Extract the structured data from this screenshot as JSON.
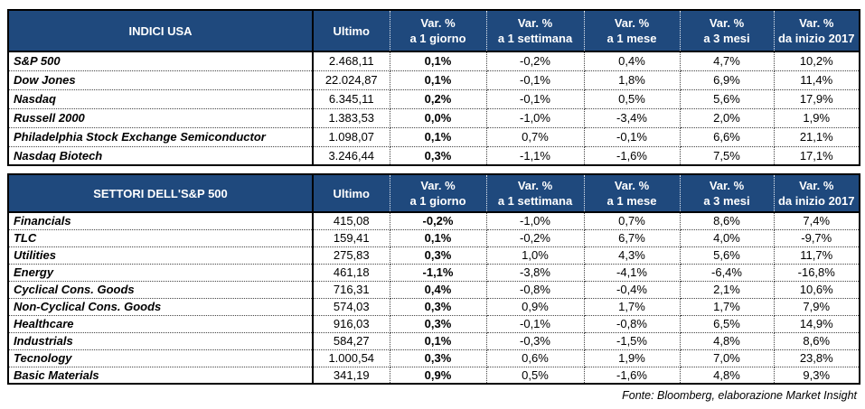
{
  "colors": {
    "header_bg": "#1F497D",
    "header_text": "#FFFFFF",
    "border": "#000000",
    "row_bg": "#FFFFFF"
  },
  "header": {
    "ultimo_label": "Ultimo",
    "var_cols": [
      {
        "top": "Var. %",
        "bottom": "a 1 giorno"
      },
      {
        "top": "Var. %",
        "bottom": "a 1 settimana"
      },
      {
        "top": "Var. %",
        "bottom": "a 1 mese"
      },
      {
        "top": "Var. %",
        "bottom": "a 3 mesi"
      },
      {
        "top": "Var. %",
        "bottom": "da inizio 2017"
      }
    ]
  },
  "footer": {
    "source": "Fonte: Bloomberg, elaborazione Market Insight"
  },
  "chart_data": [
    {
      "type": "table",
      "title": "INDICI USA",
      "columns": [
        "INDICI USA",
        "Ultimo",
        "Var. % a 1 giorno",
        "Var. % a 1 settimana",
        "Var. % a 1 mese",
        "Var. % a 3 mesi",
        "Var. % da inizio 2017"
      ],
      "rows": [
        [
          "S&P 500",
          "2.468,11",
          "0,1%",
          "-0,2%",
          "0,4%",
          "4,7%",
          "10,2%"
        ],
        [
          "Dow Jones",
          "22.024,87",
          "0,1%",
          "-0,1%",
          "1,8%",
          "6,9%",
          "11,4%"
        ],
        [
          "Nasdaq",
          "6.345,11",
          "0,2%",
          "-0,1%",
          "0,5%",
          "5,6%",
          "17,9%"
        ],
        [
          "Russell 2000",
          "1.383,53",
          "0,0%",
          "-1,0%",
          "-3,4%",
          "2,0%",
          "1,9%"
        ],
        [
          "Philadelphia Stock Exchange Semiconductor",
          "1.098,07",
          "0,1%",
          "0,7%",
          "-0,1%",
          "6,6%",
          "21,1%"
        ],
        [
          "Nasdaq Biotech",
          "3.246,44",
          "0,3%",
          "-1,1%",
          "-1,6%",
          "7,5%",
          "17,1%"
        ]
      ]
    },
    {
      "type": "table",
      "title": "SETTORI DELL'S&P 500",
      "columns": [
        "SETTORI DELL'S&P 500",
        "Ultimo",
        "Var. % a 1 giorno",
        "Var. % a 1 settimana",
        "Var. % a 1 mese",
        "Var. % a 3 mesi",
        "Var. % da inizio 2017"
      ],
      "rows": [
        [
          "Financials",
          "415,08",
          "-0,2%",
          "-1,0%",
          "0,7%",
          "8,6%",
          "7,4%"
        ],
        [
          "TLC",
          "159,41",
          "0,1%",
          "-0,2%",
          "6,7%",
          "4,0%",
          "-9,7%"
        ],
        [
          "Utilities",
          "275,83",
          "0,3%",
          "1,0%",
          "4,3%",
          "5,6%",
          "11,7%"
        ],
        [
          "Energy",
          "461,18",
          "-1,1%",
          "-3,8%",
          "-4,1%",
          "-6,4%",
          "-16,8%"
        ],
        [
          "Cyclical Cons. Goods",
          "716,31",
          "0,4%",
          "-0,8%",
          "-0,4%",
          "2,1%",
          "10,6%"
        ],
        [
          "Non-Cyclical Cons. Goods",
          "574,03",
          "0,3%",
          "0,9%",
          "1,7%",
          "1,7%",
          "7,9%"
        ],
        [
          "Healthcare",
          "916,03",
          "0,3%",
          "-0,1%",
          "-0,8%",
          "6,5%",
          "14,9%"
        ],
        [
          "Industrials",
          "584,27",
          "0,1%",
          "-0,3%",
          "-1,5%",
          "4,8%",
          "8,6%"
        ],
        [
          "Tecnology",
          "1.000,54",
          "0,3%",
          "0,6%",
          "1,9%",
          "7,0%",
          "23,8%"
        ],
        [
          "Basic Materials",
          "341,19",
          "0,9%",
          "0,5%",
          "-1,6%",
          "4,8%",
          "9,3%"
        ]
      ]
    }
  ]
}
